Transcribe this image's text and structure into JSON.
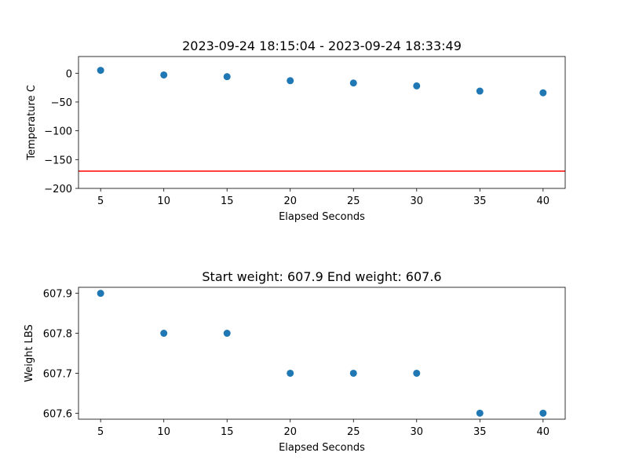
{
  "chart_data": [
    {
      "type": "scatter",
      "title": "2023-09-24 18:15:04 - 2023-09-24 18:33:49",
      "xlabel": "Elapsed Seconds",
      "ylabel": "Temperature C",
      "x": [
        5,
        10,
        15,
        20,
        25,
        30,
        35,
        40
      ],
      "y": [
        5,
        -3,
        -6,
        -13,
        -17,
        -22,
        -31,
        -34
      ],
      "xlim": [
        3.25,
        41.75
      ],
      "ylim": [
        -200,
        29
      ],
      "xticks": [
        5,
        10,
        15,
        20,
        25,
        30,
        35,
        40
      ],
      "yticks": [
        0,
        -50,
        -100,
        -150,
        -200
      ],
      "hline": -170,
      "hline_color": "#ff0000",
      "marker_color": "#1f77b4",
      "grid": false
    },
    {
      "type": "scatter",
      "title": "Start weight: 607.9 End weight: 607.6",
      "xlabel": "Elapsed Seconds",
      "ylabel": "Weight LBS",
      "x": [
        5,
        10,
        15,
        20,
        25,
        30,
        35,
        40
      ],
      "y": [
        607.9,
        607.8,
        607.8,
        607.7,
        607.7,
        607.7,
        607.6,
        607.6
      ],
      "xlim": [
        3.25,
        41.75
      ],
      "ylim": [
        607.585,
        607.915
      ],
      "xticks": [
        5,
        10,
        15,
        20,
        25,
        30,
        35,
        40
      ],
      "yticks": [
        607.6,
        607.7,
        607.8,
        607.9
      ],
      "marker_color": "#1f77b4",
      "grid": false
    }
  ]
}
